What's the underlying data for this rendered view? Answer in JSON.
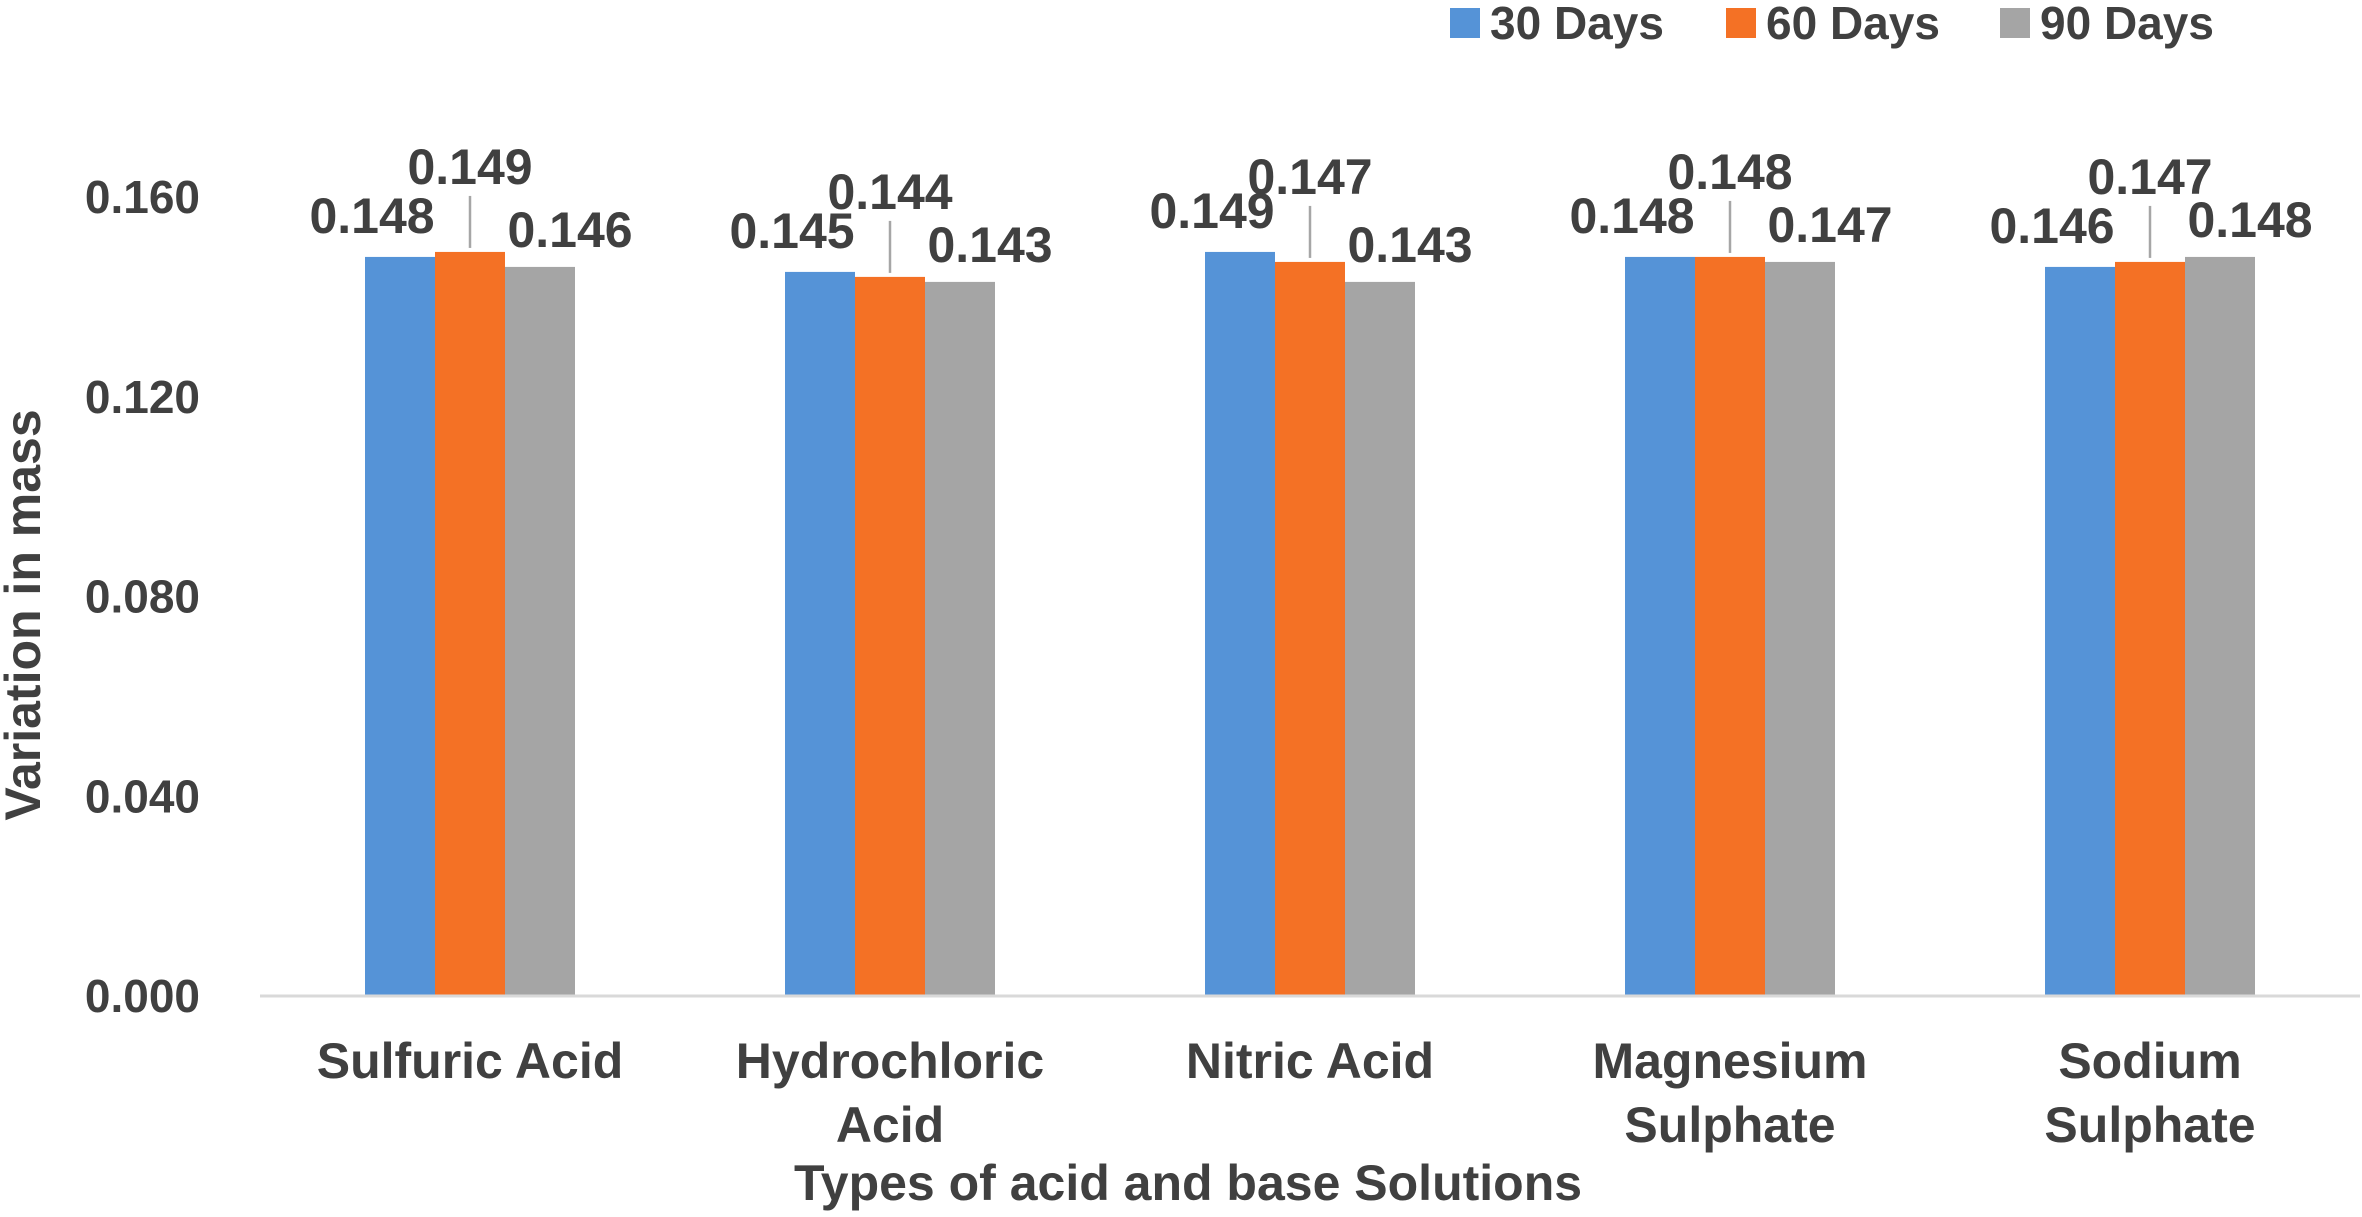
{
  "chart_data": {
    "type": "bar",
    "title": "",
    "xlabel": "Types of acid and base Solutions",
    "ylabel": "Variation in mass",
    "ylim": [
      0,
      0.16
    ],
    "yticks": [
      "0.000",
      "0.040",
      "0.080",
      "0.120",
      "0.160"
    ],
    "grid": false,
    "legend_position": "top-right",
    "categories": [
      [
        "Sulfuric Acid"
      ],
      [
        "Hydrochloric",
        "Acid"
      ],
      [
        "Nitric Acid"
      ],
      [
        "Magnesium",
        "Sulphate"
      ],
      [
        "Sodium",
        "Sulphate"
      ]
    ],
    "series": [
      {
        "name": "30 Days",
        "color": "#5593D7",
        "values": [
          0.148,
          0.145,
          0.149,
          0.148,
          0.146
        ],
        "labels": [
          "0.148",
          "0.145",
          "0.149",
          "0.148",
          "0.146"
        ]
      },
      {
        "name": "60 Days",
        "color": "#F47125",
        "values": [
          0.149,
          0.144,
          0.147,
          0.148,
          0.147
        ],
        "labels": [
          "0.149",
          "0.144",
          "0.147",
          "0.148",
          "0.147"
        ]
      },
      {
        "name": "90 Days",
        "color": "#A5A5A5",
        "values": [
          0.146,
          0.143,
          0.143,
          0.147,
          0.148
        ],
        "labels": [
          "0.146",
          "0.143",
          "0.143",
          "0.147",
          "0.148"
        ]
      }
    ]
  }
}
